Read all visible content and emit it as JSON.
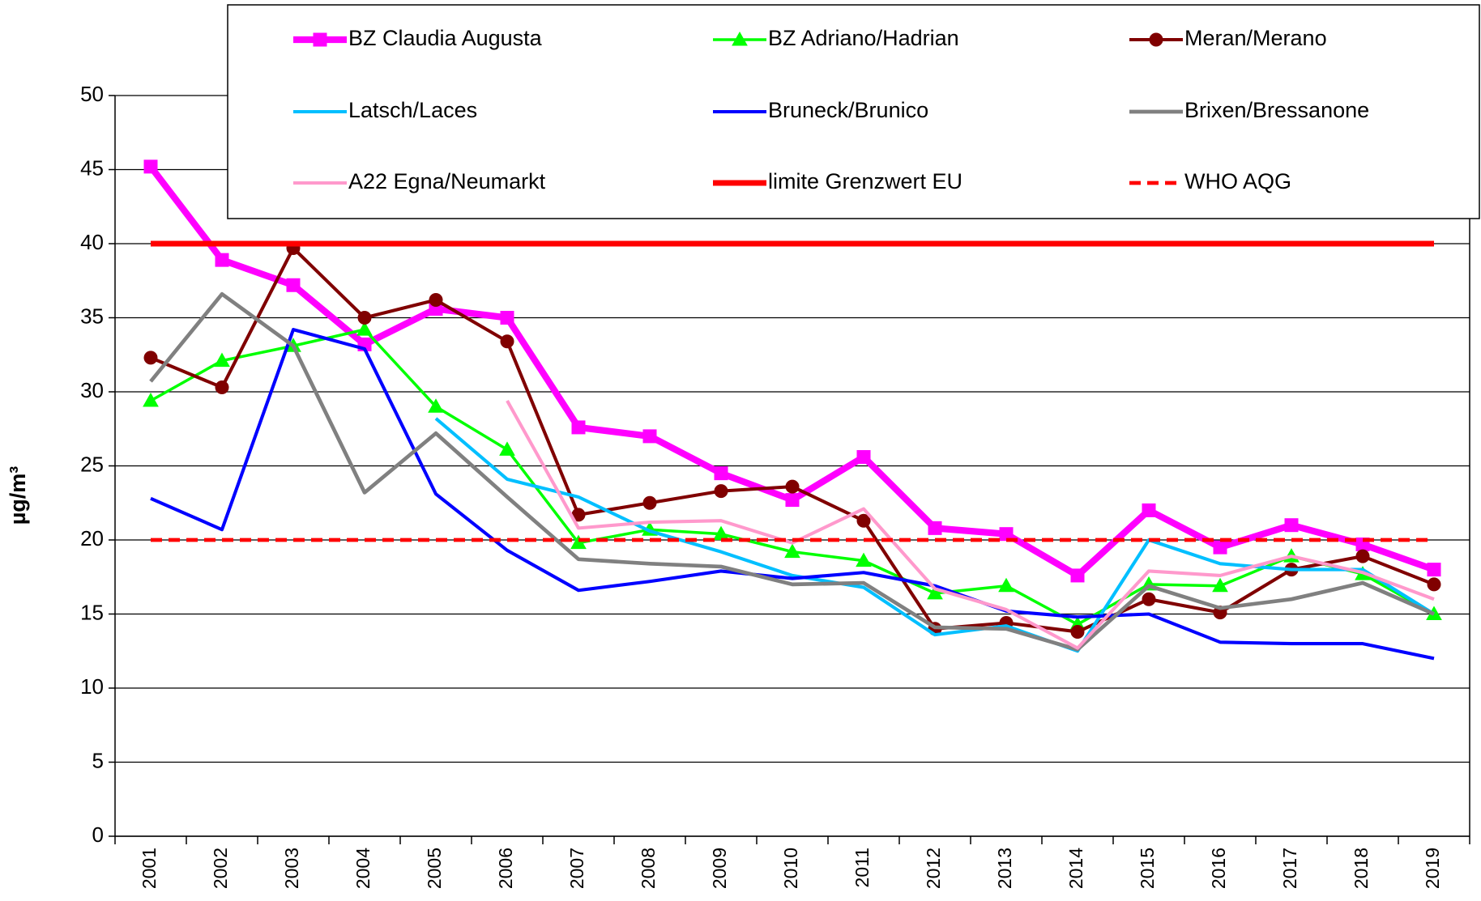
{
  "chart_data": {
    "type": "line",
    "ylabel": "µg/m³",
    "categories": [
      "2001",
      "2002",
      "2003",
      "2004",
      "2005",
      "2006",
      "2007",
      "2008",
      "2009",
      "2010",
      "2011",
      "2012",
      "2013",
      "2014",
      "2015",
      "2016",
      "2017",
      "2018",
      "2019"
    ],
    "ylim": [
      0,
      50
    ],
    "yticks": [
      0,
      5,
      10,
      15,
      20,
      25,
      30,
      35,
      40,
      45,
      50
    ],
    "grid": true,
    "series": [
      {
        "name": "BZ Claudia Augusta",
        "color": "#ff00ff",
        "width": 7,
        "marker": "square",
        "values": [
          45.2,
          38.9,
          37.2,
          33.2,
          35.6,
          35.0,
          27.6,
          27.0,
          24.5,
          22.7,
          25.6,
          20.8,
          20.4,
          17.6,
          22.0,
          19.5,
          21.0,
          19.7,
          18.0
        ]
      },
      {
        "name": "BZ Adriano/Hadrian",
        "color": "#00ff00",
        "width": 3,
        "marker": "triangle",
        "values": [
          29.4,
          32.1,
          33.1,
          34.2,
          29.0,
          26.1,
          19.8,
          20.7,
          20.4,
          19.2,
          18.6,
          16.4,
          16.9,
          14.3,
          17.0,
          16.9,
          18.9,
          17.7,
          15.0
        ]
      },
      {
        "name": "Meran/Merano",
        "color": "#800000",
        "width": 3.5,
        "marker": "circle",
        "values": [
          32.3,
          30.3,
          39.7,
          35.0,
          36.2,
          33.4,
          21.7,
          22.5,
          23.3,
          23.6,
          21.3,
          14.0,
          14.4,
          13.8,
          16.0,
          15.1,
          18.0,
          18.9,
          17.0
        ]
      },
      {
        "name": "Latsch/Laces",
        "color": "#00bfff",
        "width": 3.5,
        "values": [
          null,
          null,
          null,
          null,
          28.2,
          24.1,
          22.9,
          20.6,
          19.2,
          17.6,
          16.8,
          13.6,
          14.2,
          12.5,
          20.0,
          18.4,
          18.0,
          18.0,
          15.0
        ]
      },
      {
        "name": "Bruneck/Brunico",
        "color": "#0000ff",
        "width": 3.5,
        "values": [
          22.8,
          20.7,
          34.2,
          32.9,
          23.1,
          19.3,
          16.6,
          17.2,
          17.9,
          17.4,
          17.8,
          16.9,
          15.2,
          14.8,
          15.0,
          13.1,
          13.0,
          13.0,
          12.0
        ]
      },
      {
        "name": "Brixen/Bressanone",
        "color": "#808080",
        "width": 4,
        "values": [
          30.7,
          36.6,
          33.1,
          23.2,
          27.2,
          22.9,
          18.7,
          18.4,
          18.2,
          17.0,
          17.1,
          14.1,
          14.0,
          12.6,
          16.9,
          15.4,
          16.0,
          17.1,
          15.0
        ]
      },
      {
        "name": "A22 Egna/Neumarkt",
        "color": "#ff99cc",
        "width": 3.5,
        "values": [
          null,
          null,
          null,
          null,
          null,
          29.4,
          20.8,
          21.2,
          21.3,
          19.8,
          22.1,
          16.7,
          15.3,
          12.7,
          17.9,
          17.6,
          18.9,
          17.8,
          16.0
        ]
      },
      {
        "name": "limite Grenzwert EU",
        "color": "#ff0000",
        "width": 6,
        "values": [
          40,
          40,
          40,
          40,
          40,
          40,
          40,
          40,
          40,
          40,
          40,
          40,
          40,
          40,
          40,
          40,
          40,
          40,
          40
        ]
      },
      {
        "name": "WHO AQG",
        "color": "#ff0000",
        "width": 4,
        "dashed": true,
        "values": [
          20,
          20,
          20,
          20,
          20,
          20,
          20,
          20,
          20,
          20,
          20,
          20,
          20,
          20,
          20,
          20,
          20,
          20,
          20
        ]
      }
    ]
  }
}
